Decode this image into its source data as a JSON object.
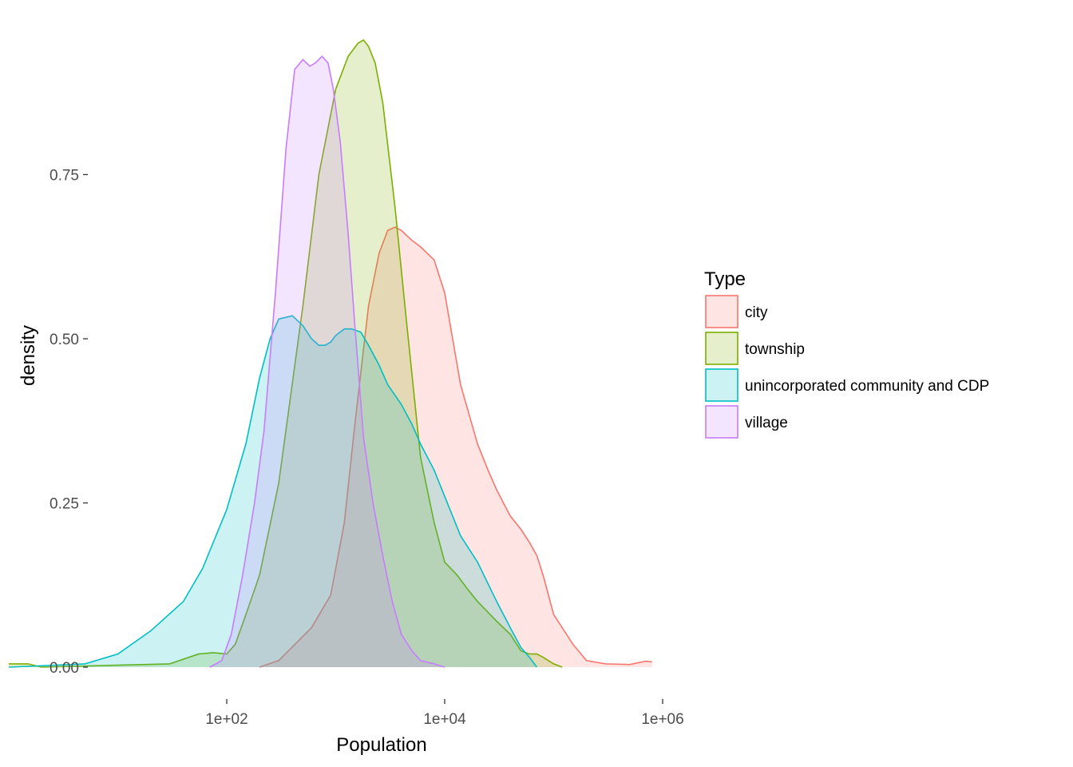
{
  "chart_data": {
    "type": "area",
    "subtype": "density",
    "xlabel": "Population",
    "ylabel": "density",
    "x_scale": "log10",
    "xlim": [
      1,
      800000
    ],
    "ylim": [
      0,
      0.95
    ],
    "grid": false,
    "x_ticks": [
      {
        "value": 100,
        "label": "1e+02"
      },
      {
        "value": 10000,
        "label": "1e+04"
      },
      {
        "value": 1000000,
        "label": "1e+06"
      }
    ],
    "y_ticks": [
      {
        "value": 0.0,
        "label": "0.00"
      },
      {
        "value": 0.25,
        "label": "0.25"
      },
      {
        "value": 0.5,
        "label": "0.50"
      },
      {
        "value": 0.75,
        "label": "0.75"
      }
    ],
    "legend": {
      "title": "Type",
      "position": "right"
    },
    "series": [
      {
        "name": "city",
        "color": "#F8766D",
        "x": [
          200,
          300,
          600,
          900,
          1200,
          1500,
          2000,
          2500,
          3000,
          3500,
          4000,
          5000,
          6000,
          8000,
          10000,
          14000,
          20000,
          25000,
          30000,
          40000,
          50000,
          60000,
          70000,
          80000,
          100000,
          150000,
          200000,
          300000,
          500000,
          700000,
          800000
        ],
        "y": [
          0.0,
          0.01,
          0.06,
          0.11,
          0.22,
          0.37,
          0.55,
          0.63,
          0.665,
          0.67,
          0.665,
          0.65,
          0.64,
          0.62,
          0.57,
          0.43,
          0.34,
          0.3,
          0.27,
          0.23,
          0.21,
          0.19,
          0.17,
          0.14,
          0.08,
          0.035,
          0.01,
          0.005,
          0.004,
          0.009,
          0.008
        ]
      },
      {
        "name": "township",
        "color": "#7CAE00",
        "x": [
          1,
          1.5,
          2,
          30,
          55,
          75,
          100,
          120,
          150,
          200,
          300,
          500,
          700,
          1000,
          1300,
          1600,
          1800,
          2000,
          2300,
          2700,
          3500,
          4500,
          6000,
          8000,
          10000,
          13000,
          16000,
          20000,
          30000,
          40000,
          50000,
          60000,
          70000,
          80000,
          100000,
          120000
        ],
        "y": [
          0.005,
          0.005,
          0.0,
          0.005,
          0.02,
          0.022,
          0.02,
          0.035,
          0.08,
          0.14,
          0.28,
          0.55,
          0.75,
          0.88,
          0.93,
          0.95,
          0.955,
          0.945,
          0.92,
          0.86,
          0.7,
          0.52,
          0.32,
          0.22,
          0.16,
          0.14,
          0.12,
          0.1,
          0.07,
          0.05,
          0.025,
          0.02,
          0.02,
          0.015,
          0.005,
          0.0
        ]
      },
      {
        "name": "unincorporated community and CDP",
        "color": "#00BFC4",
        "x": [
          1,
          5,
          10,
          20,
          40,
          60,
          100,
          150,
          200,
          250,
          300,
          400,
          500,
          600,
          700,
          800,
          900,
          1000,
          1200,
          1400,
          1700,
          2000,
          2500,
          3000,
          4000,
          5000,
          6000,
          8000,
          10000,
          14000,
          20000,
          30000,
          40000,
          50000,
          60000,
          70000
        ],
        "y": [
          0.0,
          0.005,
          0.02,
          0.055,
          0.1,
          0.15,
          0.24,
          0.34,
          0.44,
          0.5,
          0.53,
          0.535,
          0.52,
          0.5,
          0.49,
          0.49,
          0.495,
          0.505,
          0.515,
          0.515,
          0.51,
          0.49,
          0.46,
          0.43,
          0.4,
          0.37,
          0.34,
          0.3,
          0.26,
          0.2,
          0.16,
          0.1,
          0.06,
          0.03,
          0.015,
          0.0
        ]
      },
      {
        "name": "village",
        "color": "#C77CFF",
        "x": [
          70,
          90,
          110,
          140,
          180,
          220,
          280,
          350,
          420,
          500,
          580,
          650,
          750,
          850,
          950,
          1100,
          1300,
          1500,
          1800,
          2200,
          2700,
          3300,
          4000,
          5000,
          6000,
          8000,
          10000
        ],
        "y": [
          0.0,
          0.01,
          0.05,
          0.14,
          0.25,
          0.36,
          0.57,
          0.79,
          0.91,
          0.925,
          0.915,
          0.92,
          0.93,
          0.92,
          0.88,
          0.8,
          0.66,
          0.52,
          0.35,
          0.25,
          0.17,
          0.1,
          0.05,
          0.025,
          0.01,
          0.005,
          0.0
        ]
      }
    ]
  }
}
